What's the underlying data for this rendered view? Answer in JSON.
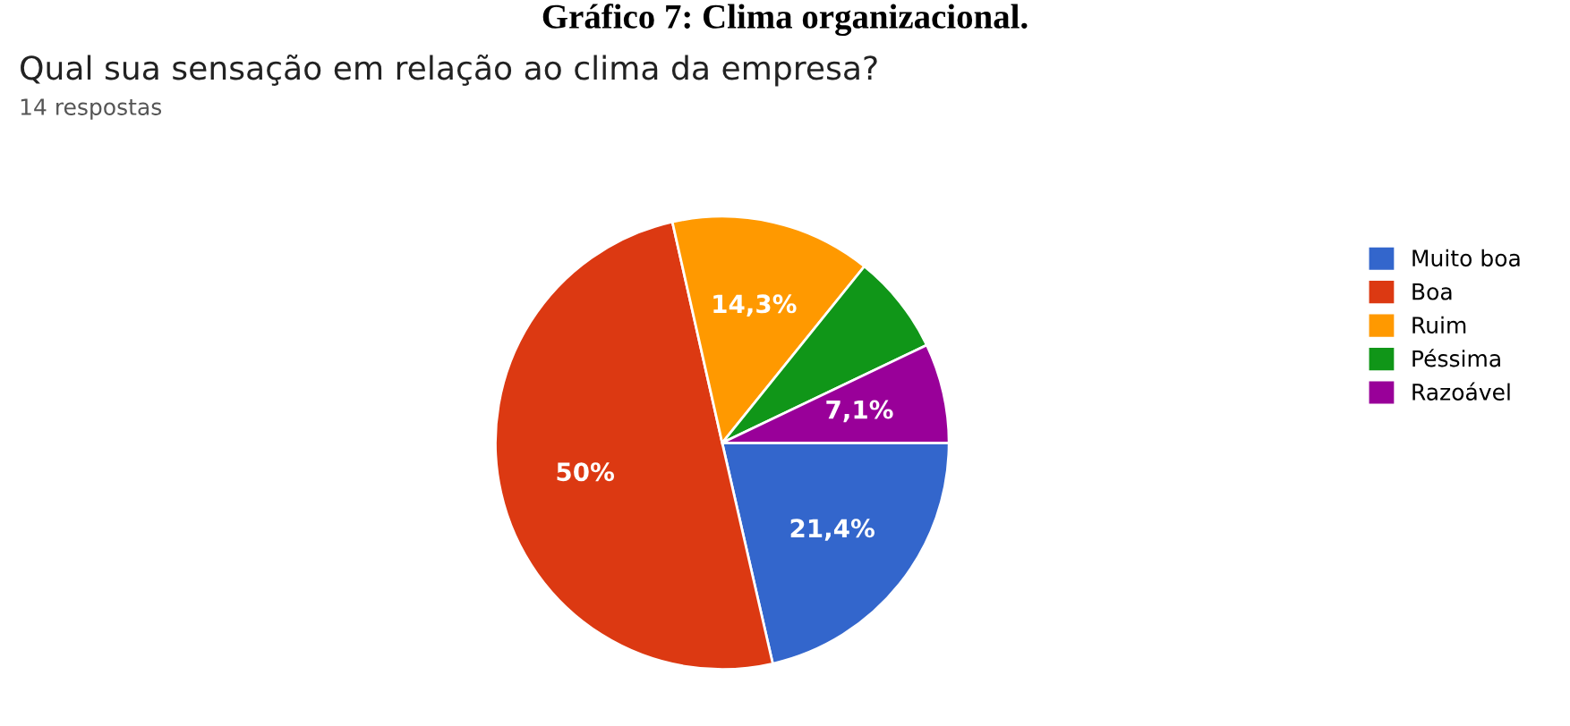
{
  "chart_data": {
    "type": "pie",
    "title": "Gráfico 7: Clima organizacional.",
    "subtitle": "Qual sua sensação em relação ao clima da empresa?",
    "annotations": [
      "14 respostas"
    ],
    "categories": [
      "Muito boa",
      "Boa",
      "Ruim",
      "Péssima",
      "Razoável"
    ],
    "values": [
      21.4,
      50,
      14.3,
      7.1,
      7.1
    ],
    "value_labels": [
      "21,4%",
      "50%",
      "14,3%",
      null,
      "7,1%"
    ],
    "colors": [
      "#3366cc",
      "#dc3912",
      "#ff9900",
      "#109618",
      "#990099"
    ],
    "legend": "right"
  }
}
